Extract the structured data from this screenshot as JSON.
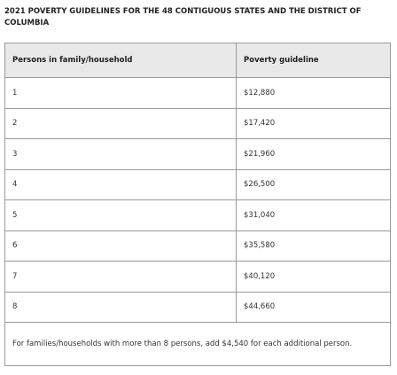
{
  "title": "2021 POVERTY GUIDELINES FOR THE 48 CONTIGUOUS STATES AND THE DISTRICT OF COLUMBIA",
  "table": {
    "header": [
      "Persons in family/household",
      "Poverty guideline"
    ],
    "rows": [
      [
        "1",
        "$12,880"
      ],
      [
        "2",
        "$17,420"
      ],
      [
        "3",
        "$21,960"
      ],
      [
        "4",
        "$26,500"
      ],
      [
        "5",
        "$31,040"
      ],
      [
        "6",
        "$35,580"
      ],
      [
        "7",
        "$40,120"
      ],
      [
        "8",
        "$44,660"
      ]
    ],
    "footnote": "For families/households with more than 8 persons, add $4,540 for each additional person."
  }
}
